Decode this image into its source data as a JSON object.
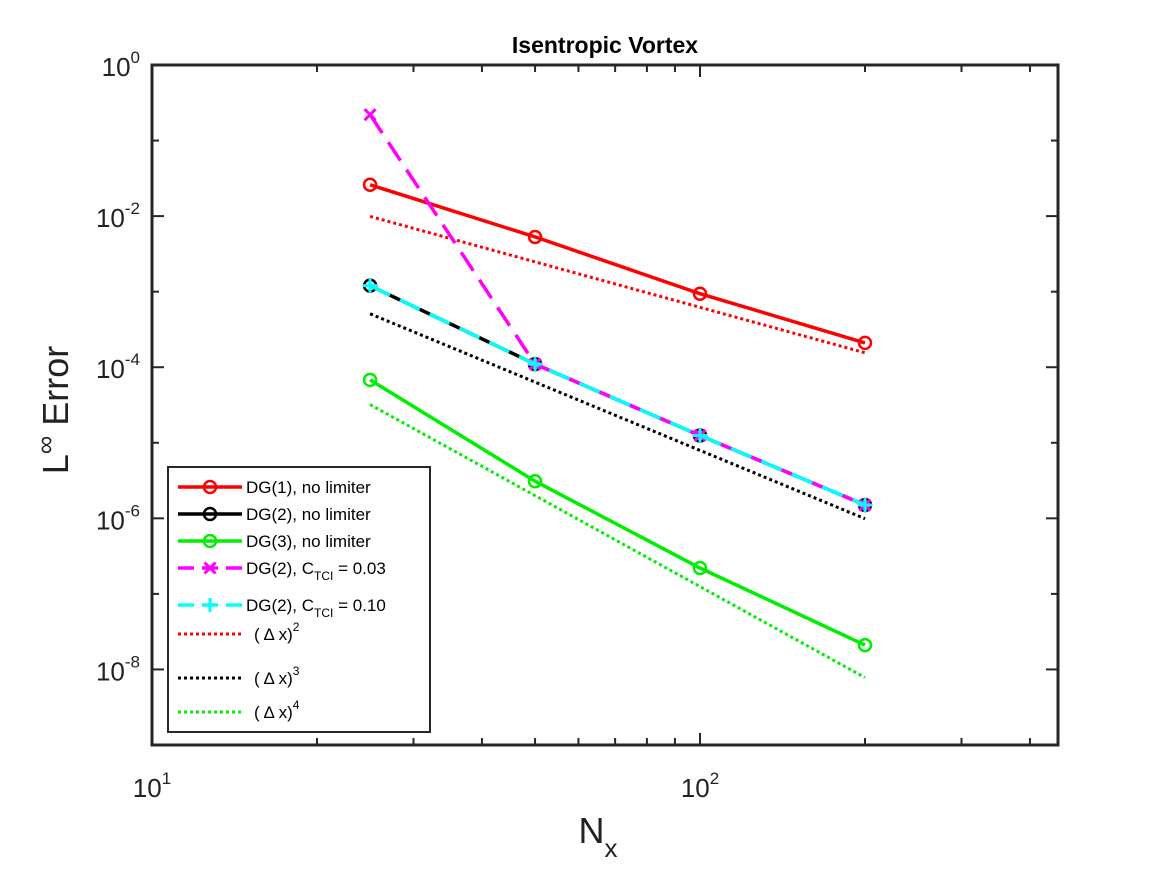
{
  "chart_data": {
    "type": "line",
    "title": "Isentropic Vortex",
    "xlabel": {
      "main": "N",
      "sub": "x"
    },
    "ylabel": {
      "pre": "L",
      "sup": "∞",
      "post": " Error"
    },
    "xscale": "log",
    "yscale": "log",
    "xlim": [
      10,
      450
    ],
    "ylim": [
      1e-09,
      1
    ],
    "grid": false,
    "legend_location": "bottom-left",
    "xticks": [
      {
        "value": 10,
        "base": "10",
        "exp": "1"
      },
      {
        "value": 100,
        "base": "10",
        "exp": "2"
      }
    ],
    "yticks": [
      {
        "value": 1,
        "base": "10",
        "exp": "0"
      },
      {
        "value": 0.01,
        "base": "10",
        "exp": "-2"
      },
      {
        "value": 0.0001,
        "base": "10",
        "exp": "-4"
      },
      {
        "value": 1e-06,
        "base": "10",
        "exp": "-6"
      },
      {
        "value": 1e-08,
        "base": "10",
        "exp": "-8"
      }
    ],
    "series": [
      {
        "name": "DG(1), no limiter",
        "legend": {
          "text": "DG(1), no limiter"
        },
        "color": "#ff0000",
        "dash": "solid",
        "marker": "circle",
        "x": [
          25,
          50,
          100,
          200
        ],
        "y": [
          0.026,
          0.0053,
          0.00094,
          0.00021
        ]
      },
      {
        "name": "DG(2), no limiter",
        "legend": {
          "text": "DG(2), no limiter"
        },
        "color": "#000000",
        "dash": "solid",
        "marker": "circle",
        "x": [
          25,
          50,
          100,
          200
        ],
        "y": [
          0.0012,
          0.00011,
          1.25e-05,
          1.5e-06
        ]
      },
      {
        "name": "DG(3), no limiter",
        "legend": {
          "text": "DG(3), no limiter"
        },
        "color": "#00ee00",
        "dash": "solid",
        "marker": "circle",
        "x": [
          25,
          50,
          100,
          200
        ],
        "y": [
          6.8e-05,
          3.1e-06,
          2.2e-07,
          2.1e-08
        ]
      },
      {
        "name": "DG(2), C_TCI = 0.03",
        "legend": {
          "text": "DG(2), C",
          "sub": "TCI",
          "post": " = 0.03"
        },
        "color": "#ff00ff",
        "dash": "dashed",
        "marker": "x",
        "x": [
          25,
          50,
          100,
          200
        ],
        "y": [
          0.22,
          0.00011,
          1.25e-05,
          1.5e-06
        ]
      },
      {
        "name": "DG(2), C_TCI = 0.10",
        "legend": {
          "text": "DG(2), C",
          "sub": "TCI",
          "post": " = 0.10"
        },
        "color": "#00ffff",
        "dash": "dashed",
        "marker": "plus",
        "x": [
          25,
          50,
          100,
          200
        ],
        "y": [
          0.0012,
          0.00011,
          1.25e-05,
          1.5e-06
        ]
      },
      {
        "name": "(Δx)^2",
        "legend": {
          "text": "( Δ x)",
          "sup": "2"
        },
        "color": "#ff0000",
        "dash": "dotted",
        "marker": "none",
        "x": [
          25,
          200
        ],
        "y": [
          0.0099,
          0.000155
        ]
      },
      {
        "name": "(Δx)^3",
        "legend": {
          "text": "( Δ x)",
          "sup": "3"
        },
        "color": "#000000",
        "dash": "dotted",
        "marker": "none",
        "x": [
          25,
          200
        ],
        "y": [
          0.00051,
          9.9e-07
        ]
      },
      {
        "name": "(Δx)^4",
        "legend": {
          "text": "( Δ x)",
          "sup": "4"
        },
        "color": "#00ee00",
        "dash": "dotted",
        "marker": "none",
        "x": [
          25,
          200
        ],
        "y": [
          3.2e-05,
          7.8e-09
        ]
      }
    ]
  }
}
